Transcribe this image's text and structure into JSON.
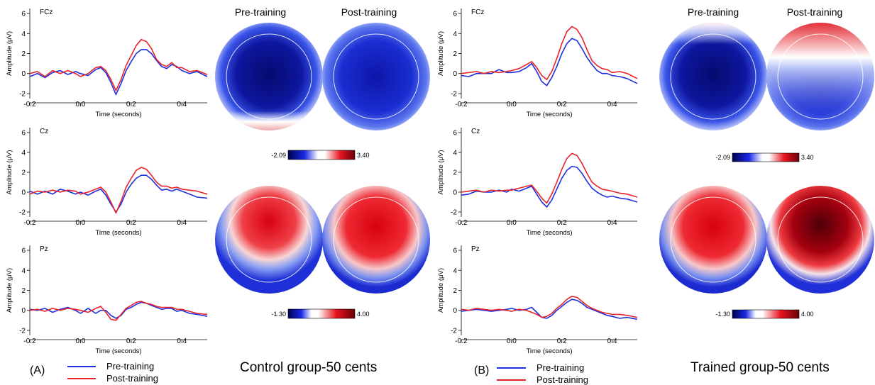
{
  "labels": {
    "panel_a": "(A)",
    "panel_b": "(B)",
    "legend_pre": "Pre-training",
    "legend_post": "Post-training",
    "group_a_caption": "Control group-50 cents",
    "group_b_caption": "Trained group-50 cents",
    "topo_header_pre": "Pre-training",
    "topo_header_post": "Post-training",
    "ylabel": "Amplitude (μV)",
    "xlabel": "Time (seconds)"
  },
  "colors": {
    "pre": "#1f2fe0",
    "post": "#e8242a",
    "topo_neg": "#0a0a78",
    "topo_pos": "#a3000c"
  },
  "colorbars": {
    "upper": {
      "min_label": "-2.09",
      "max_label": "3.40"
    },
    "lower": {
      "min_label": "-1.30",
      "max_label": "4.00"
    }
  },
  "chart_data": [
    {
      "type": "line",
      "panel": "A",
      "channel": "FCz",
      "xlim": [
        -0.2,
        0.5
      ],
      "ylim": [
        -2.5,
        6.5
      ],
      "xticks": [
        -0.2,
        0.0,
        0.2,
        0.4
      ],
      "yticks": [
        -2,
        0,
        2,
        4,
        6
      ],
      "xlabel": "Time (seconds)",
      "ylabel": "Amplitude (μV)",
      "series": [
        {
          "name": "Pre-training",
          "x": [
            -0.2,
            -0.17,
            -0.14,
            -0.11,
            -0.08,
            -0.05,
            -0.02,
            0.0,
            0.03,
            0.06,
            0.08,
            0.1,
            0.12,
            0.14,
            0.16,
            0.18,
            0.2,
            0.22,
            0.24,
            0.26,
            0.28,
            0.3,
            0.32,
            0.34,
            0.36,
            0.38,
            0.4,
            0.43,
            0.46,
            0.5
          ],
          "values": [
            -0.3,
            0.0,
            -0.4,
            0.1,
            0.3,
            -0.1,
            0.2,
            0.0,
            -0.2,
            0.4,
            0.6,
            0.1,
            -0.9,
            -2.1,
            -1.0,
            0.3,
            1.2,
            2.0,
            2.4,
            2.4,
            2.0,
            1.3,
            0.7,
            0.5,
            0.9,
            0.7,
            0.3,
            0.0,
            0.2,
            -0.3
          ]
        },
        {
          "name": "Post-training",
          "x": [
            -0.2,
            -0.17,
            -0.14,
            -0.11,
            -0.08,
            -0.05,
            -0.02,
            0.0,
            0.03,
            0.06,
            0.08,
            0.1,
            0.12,
            0.14,
            0.16,
            0.18,
            0.2,
            0.22,
            0.24,
            0.26,
            0.28,
            0.3,
            0.32,
            0.34,
            0.36,
            0.38,
            0.4,
            0.43,
            0.46,
            0.5
          ],
          "values": [
            0.0,
            0.2,
            -0.3,
            0.3,
            0.0,
            0.3,
            0.0,
            -0.3,
            0.0,
            0.6,
            0.7,
            0.3,
            -0.6,
            -1.7,
            -0.6,
            0.8,
            1.8,
            2.8,
            3.4,
            3.2,
            2.5,
            1.4,
            0.9,
            0.7,
            1.1,
            0.6,
            0.6,
            0.2,
            0.3,
            -0.1
          ]
        }
      ]
    },
    {
      "type": "line",
      "panel": "A",
      "channel": "Cz",
      "xlim": [
        -0.2,
        0.5
      ],
      "ylim": [
        -2.5,
        6.5
      ],
      "xticks": [
        -0.2,
        0.0,
        0.2,
        0.4
      ],
      "yticks": [
        -2,
        0,
        2,
        4,
        6
      ],
      "xlabel": "Time (seconds)",
      "ylabel": "Amplitude (μV)",
      "series": [
        {
          "name": "Pre-training",
          "x": [
            -0.2,
            -0.17,
            -0.14,
            -0.11,
            -0.08,
            -0.05,
            -0.02,
            0.0,
            0.03,
            0.06,
            0.08,
            0.1,
            0.12,
            0.14,
            0.16,
            0.18,
            0.2,
            0.22,
            0.24,
            0.26,
            0.28,
            0.3,
            0.32,
            0.34,
            0.36,
            0.38,
            0.4,
            0.43,
            0.46,
            0.5
          ],
          "values": [
            0.1,
            -0.2,
            0.1,
            -0.2,
            0.3,
            0.1,
            -0.2,
            0.0,
            -0.3,
            0.1,
            0.3,
            -0.3,
            -1.2,
            -2.0,
            -1.2,
            0.0,
            0.8,
            1.4,
            1.7,
            1.7,
            1.3,
            0.7,
            0.2,
            0.3,
            0.1,
            0.3,
            0.1,
            -0.2,
            -0.5,
            -0.6
          ]
        },
        {
          "name": "Post-training",
          "x": [
            -0.2,
            -0.17,
            -0.14,
            -0.11,
            -0.08,
            -0.05,
            -0.02,
            0.0,
            0.03,
            0.06,
            0.08,
            0.1,
            0.12,
            0.14,
            0.16,
            0.18,
            0.2,
            0.22,
            0.24,
            0.26,
            0.28,
            0.3,
            0.32,
            0.34,
            0.36,
            0.38,
            0.4,
            0.43,
            0.46,
            0.5
          ],
          "values": [
            -0.2,
            0.1,
            0.0,
            0.2,
            0.0,
            0.2,
            0.1,
            -0.2,
            0.0,
            0.3,
            0.5,
            0.0,
            -1.0,
            -2.1,
            -0.9,
            0.5,
            1.4,
            2.2,
            2.5,
            2.3,
            1.7,
            1.0,
            0.6,
            0.6,
            0.4,
            0.5,
            0.3,
            0.2,
            0.1,
            -0.2
          ]
        }
      ]
    },
    {
      "type": "line",
      "panel": "A",
      "channel": "Pz",
      "xlim": [
        -0.2,
        0.5
      ],
      "ylim": [
        -2.5,
        6.5
      ],
      "xticks": [
        -0.2,
        0.0,
        0.2,
        0.4
      ],
      "yticks": [
        -2,
        0,
        2,
        4,
        6
      ],
      "xlabel": "Time (seconds)",
      "ylabel": "Amplitude (μV)",
      "series": [
        {
          "name": "Pre-training",
          "x": [
            -0.2,
            -0.17,
            -0.14,
            -0.11,
            -0.08,
            -0.05,
            -0.02,
            0.0,
            0.03,
            0.06,
            0.08,
            0.1,
            0.12,
            0.14,
            0.16,
            0.18,
            0.2,
            0.22,
            0.24,
            0.26,
            0.28,
            0.3,
            0.32,
            0.34,
            0.36,
            0.38,
            0.4,
            0.43,
            0.46,
            0.5
          ],
          "values": [
            0.1,
            0.0,
            0.2,
            -0.2,
            0.1,
            0.3,
            0.0,
            -0.3,
            0.2,
            -0.3,
            0.0,
            0.0,
            -0.5,
            -0.8,
            -0.5,
            0.1,
            0.3,
            0.6,
            0.8,
            0.7,
            0.5,
            0.3,
            0.1,
            0.2,
            0.2,
            -0.1,
            0.0,
            -0.3,
            -0.4,
            -0.6
          ]
        },
        {
          "name": "Post-training",
          "x": [
            -0.2,
            -0.17,
            -0.14,
            -0.11,
            -0.08,
            -0.05,
            -0.02,
            0.0,
            0.03,
            0.06,
            0.08,
            0.1,
            0.12,
            0.14,
            0.16,
            0.18,
            0.2,
            0.22,
            0.24,
            0.26,
            0.28,
            0.3,
            0.32,
            0.34,
            0.36,
            0.38,
            0.4,
            0.43,
            0.46,
            0.5
          ],
          "values": [
            0.0,
            0.1,
            -0.1,
            0.2,
            0.0,
            0.2,
            0.1,
            0.0,
            -0.2,
            0.2,
            0.4,
            -0.2,
            -0.9,
            -1.0,
            -0.4,
            0.2,
            0.5,
            0.8,
            0.9,
            0.7,
            0.6,
            0.4,
            0.3,
            0.3,
            0.3,
            0.1,
            0.1,
            -0.1,
            -0.3,
            -0.4
          ]
        }
      ]
    },
    {
      "type": "line",
      "panel": "B",
      "channel": "FCz",
      "xlim": [
        -0.2,
        0.5
      ],
      "ylim": [
        -2.5,
        6.5
      ],
      "xticks": [
        -0.2,
        0.0,
        0.2,
        0.4
      ],
      "yticks": [
        -2,
        0,
        2,
        4,
        6
      ],
      "xlabel": "Time (seconds)",
      "ylabel": "Amplitude (μV)",
      "series": [
        {
          "name": "Pre-training",
          "x": [
            -0.2,
            -0.17,
            -0.14,
            -0.11,
            -0.08,
            -0.05,
            -0.02,
            0.0,
            0.03,
            0.06,
            0.08,
            0.1,
            0.12,
            0.14,
            0.16,
            0.18,
            0.2,
            0.22,
            0.24,
            0.26,
            0.28,
            0.3,
            0.32,
            0.34,
            0.36,
            0.38,
            0.4,
            0.43,
            0.46,
            0.5
          ],
          "values": [
            -0.2,
            -0.3,
            0.0,
            0.0,
            0.0,
            0.4,
            0.1,
            0.1,
            0.2,
            0.6,
            1.0,
            0.2,
            -0.8,
            -1.2,
            -0.4,
            0.7,
            2.0,
            3.0,
            3.5,
            3.3,
            2.5,
            1.6,
            0.9,
            0.3,
            0.0,
            0.0,
            -0.2,
            -0.3,
            -0.5,
            -1.0
          ]
        },
        {
          "name": "Post-training",
          "x": [
            -0.2,
            -0.17,
            -0.14,
            -0.11,
            -0.08,
            -0.05,
            -0.02,
            0.0,
            0.03,
            0.06,
            0.08,
            0.1,
            0.12,
            0.14,
            0.16,
            0.18,
            0.2,
            0.22,
            0.24,
            0.26,
            0.28,
            0.3,
            0.32,
            0.34,
            0.36,
            0.38,
            0.4,
            0.43,
            0.46,
            0.5
          ],
          "values": [
            0.0,
            0.1,
            0.2,
            0.0,
            0.2,
            0.1,
            0.2,
            0.3,
            0.5,
            0.9,
            1.2,
            0.6,
            -0.2,
            -0.6,
            0.2,
            1.5,
            3.0,
            4.2,
            4.7,
            4.4,
            3.6,
            2.4,
            1.3,
            0.8,
            0.5,
            0.4,
            0.1,
            0.2,
            0.0,
            -0.5
          ]
        }
      ]
    },
    {
      "type": "line",
      "panel": "B",
      "channel": "Cz",
      "xlim": [
        -0.2,
        0.5
      ],
      "ylim": [
        -2.5,
        6.5
      ],
      "xticks": [
        -0.2,
        0.0,
        0.2,
        0.4
      ],
      "yticks": [
        -2,
        0,
        2,
        4,
        6
      ],
      "xlabel": "Time (seconds)",
      "ylabel": "Amplitude (μV)",
      "series": [
        {
          "name": "Pre-training",
          "x": [
            -0.2,
            -0.17,
            -0.14,
            -0.11,
            -0.08,
            -0.05,
            -0.02,
            0.0,
            0.03,
            0.06,
            0.08,
            0.1,
            0.12,
            0.14,
            0.16,
            0.18,
            0.2,
            0.22,
            0.24,
            0.26,
            0.28,
            0.3,
            0.32,
            0.34,
            0.36,
            0.38,
            0.4,
            0.43,
            0.46,
            0.5
          ],
          "values": [
            -0.3,
            -0.2,
            0.1,
            0.0,
            0.0,
            0.2,
            0.0,
            0.3,
            0.1,
            0.4,
            0.6,
            -0.2,
            -1.0,
            -1.5,
            -0.8,
            0.3,
            1.4,
            2.2,
            2.6,
            2.5,
            1.9,
            1.1,
            0.4,
            0.0,
            -0.3,
            -0.5,
            -0.4,
            -0.6,
            -0.7,
            -1.0
          ]
        },
        {
          "name": "Post-training",
          "x": [
            -0.2,
            -0.17,
            -0.14,
            -0.11,
            -0.08,
            -0.05,
            -0.02,
            0.0,
            0.03,
            0.06,
            0.08,
            0.1,
            0.12,
            0.14,
            0.16,
            0.18,
            0.2,
            0.22,
            0.24,
            0.26,
            0.28,
            0.3,
            0.32,
            0.34,
            0.36,
            0.38,
            0.4,
            0.43,
            0.46,
            0.5
          ],
          "values": [
            0.0,
            0.1,
            0.2,
            0.0,
            0.2,
            0.1,
            0.2,
            0.2,
            0.4,
            0.6,
            0.7,
            0.1,
            -0.6,
            -1.1,
            -0.2,
            1.0,
            2.3,
            3.4,
            3.9,
            3.7,
            2.9,
            1.9,
            1.0,
            0.6,
            0.3,
            0.2,
            0.1,
            -0.1,
            -0.2,
            -0.5
          ]
        }
      ]
    },
    {
      "type": "line",
      "panel": "B",
      "channel": "Pz",
      "xlim": [
        -0.2,
        0.5
      ],
      "ylim": [
        -2.5,
        6.5
      ],
      "xticks": [
        -0.2,
        0.0,
        0.2,
        0.4
      ],
      "yticks": [
        -2,
        0,
        2,
        4,
        6
      ],
      "xlabel": "Time (seconds)",
      "ylabel": "Amplitude (μV)",
      "series": [
        {
          "name": "Pre-training",
          "x": [
            -0.2,
            -0.17,
            -0.14,
            -0.11,
            -0.08,
            -0.05,
            -0.02,
            0.0,
            0.03,
            0.06,
            0.08,
            0.1,
            0.12,
            0.14,
            0.16,
            0.18,
            0.2,
            0.22,
            0.24,
            0.26,
            0.28,
            0.3,
            0.32,
            0.34,
            0.36,
            0.38,
            0.4,
            0.43,
            0.46,
            0.5
          ],
          "values": [
            -0.1,
            0.0,
            0.1,
            0.0,
            -0.1,
            0.0,
            0.1,
            0.2,
            0.0,
            0.1,
            0.3,
            -0.2,
            -0.7,
            -0.8,
            -0.5,
            0.0,
            0.4,
            0.8,
            1.1,
            1.0,
            0.7,
            0.3,
            0.1,
            -0.1,
            -0.3,
            -0.5,
            -0.6,
            -0.8,
            -0.7,
            -0.9
          ]
        },
        {
          "name": "Post-training",
          "x": [
            -0.2,
            -0.17,
            -0.14,
            -0.11,
            -0.08,
            -0.05,
            -0.02,
            0.0,
            0.03,
            0.06,
            0.08,
            0.1,
            0.12,
            0.14,
            0.16,
            0.18,
            0.2,
            0.22,
            0.24,
            0.26,
            0.28,
            0.3,
            0.32,
            0.34,
            0.36,
            0.38,
            0.4,
            0.43,
            0.46,
            0.5
          ],
          "values": [
            0.1,
            0.0,
            0.2,
            0.1,
            0.0,
            0.1,
            0.0,
            -0.1,
            0.1,
            0.0,
            -0.2,
            -0.4,
            -0.7,
            -0.6,
            -0.3,
            0.2,
            0.6,
            1.1,
            1.4,
            1.3,
            0.9,
            0.5,
            0.2,
            0.0,
            -0.2,
            -0.3,
            -0.4,
            -0.4,
            -0.5,
            -0.7
          ]
        }
      ]
    },
    {
      "type": "heatmap",
      "panel": "A",
      "kind": "topographic-map",
      "columns": [
        "Pre-training",
        "Post-training"
      ],
      "rows": [
        {
          "colorbar": [
            -2.09,
            3.4
          ],
          "pre": "mostly-negative",
          "post": "mostly-negative"
        },
        {
          "colorbar": [
            -1.3,
            4.0
          ],
          "pre": "positive-frontal",
          "post": "positive-central"
        }
      ]
    },
    {
      "type": "heatmap",
      "panel": "B",
      "kind": "topographic-map",
      "columns": [
        "Pre-training",
        "Post-training"
      ],
      "rows": [
        {
          "colorbar": [
            -2.09,
            3.4
          ],
          "pre": "mostly-negative",
          "post": "positive-frontal-rim"
        },
        {
          "colorbar": [
            -1.3,
            4.0
          ],
          "pre": "positive-central",
          "post": "strong-positive-central"
        }
      ]
    }
  ]
}
